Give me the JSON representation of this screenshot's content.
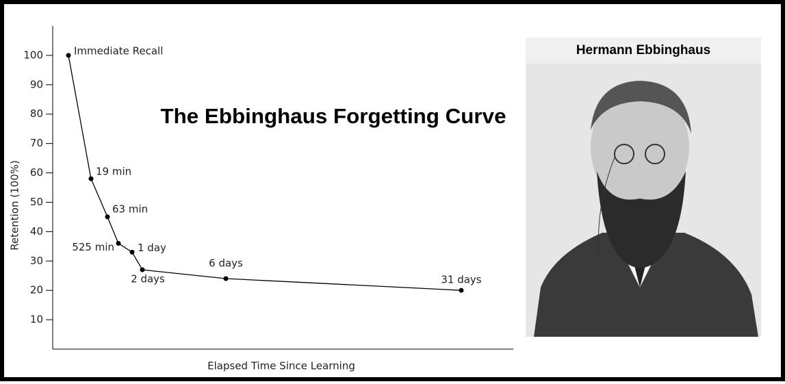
{
  "chart_data": {
    "type": "line",
    "title": "The Ebbinghaus Forgetting Curve",
    "ylabel": "Retention (100%)",
    "xlabel": "Elapsed Time Since Learning",
    "categories": [
      "Immediate Recall",
      "19 min",
      "63 min",
      "525 min",
      "1 day",
      "2 days",
      "6 days",
      "31 days"
    ],
    "values": [
      100,
      58,
      45,
      36,
      33,
      27,
      24,
      20
    ],
    "color": "#000000",
    "ylim": [
      0,
      110
    ],
    "yticks": [
      10,
      20,
      30,
      40,
      50,
      60,
      70,
      80,
      90,
      100
    ]
  },
  "portrait": {
    "caption": "Hermann Ebbinghaus"
  }
}
